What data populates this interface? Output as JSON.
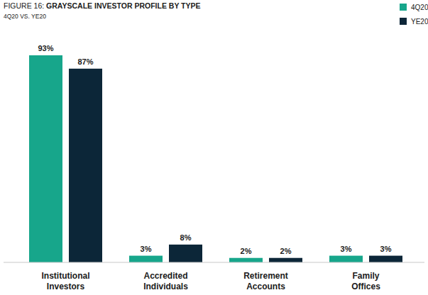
{
  "chart_data": {
    "type": "bar",
    "title": "FIGURE 16: GRAYSCALE INVESTOR PROFILE BY TYPE",
    "subtitle": "4Q20 VS. YE20",
    "categories": [
      "Institutional Investors",
      "Accredited Individuals",
      "Retirement Accounts",
      "Family Offices"
    ],
    "series": [
      {
        "name": "4Q20",
        "color": "#17a68b",
        "values": [
          93,
          3,
          2,
          3
        ],
        "value_labels": [
          "93%",
          "3%",
          "2%",
          "3%"
        ]
      },
      {
        "name": "YE20",
        "color": "#0c2638",
        "values": [
          87,
          8,
          2,
          3
        ],
        "value_labels": [
          "87%",
          "8%",
          "2%",
          "3%"
        ]
      }
    ],
    "ylim": [
      0,
      100
    ],
    "tick_labels": "x",
    "data_labels": true,
    "legend": "upper right",
    "grid": false
  }
}
